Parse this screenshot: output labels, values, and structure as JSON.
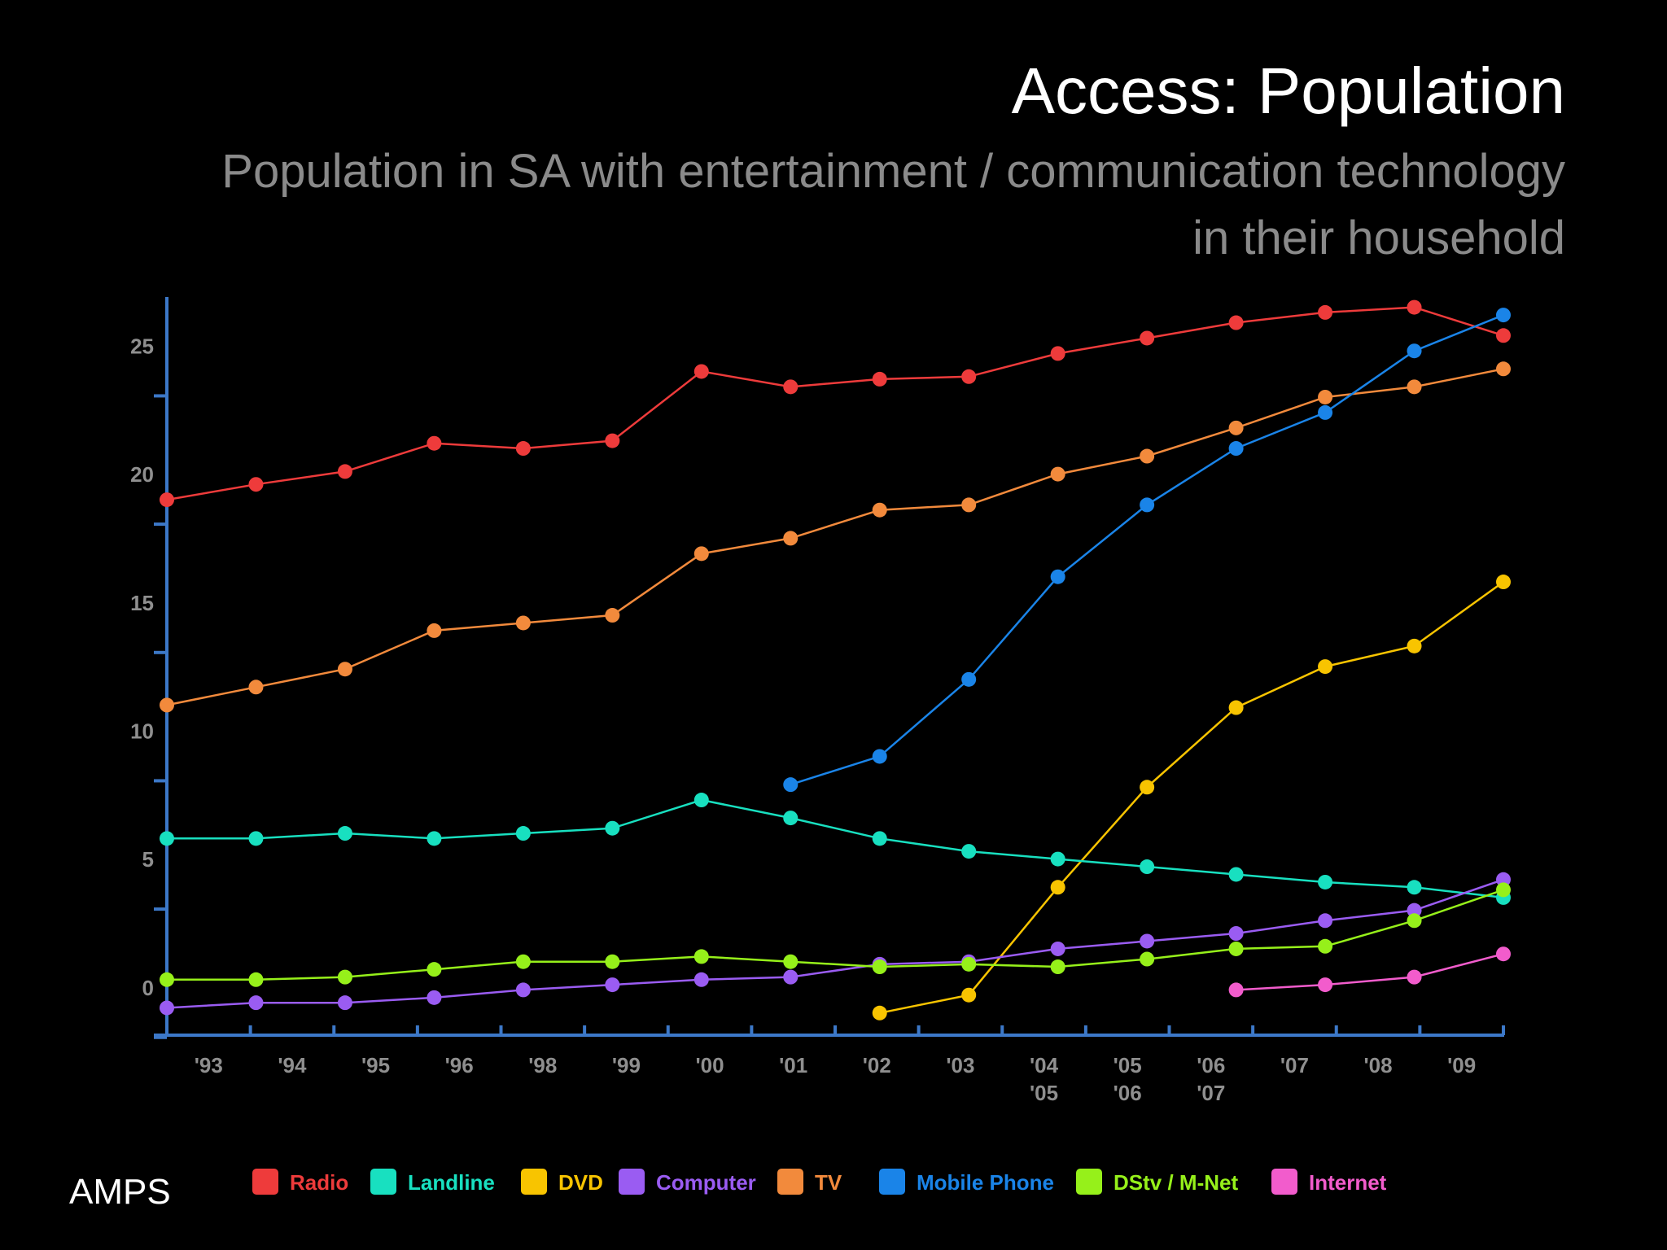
{
  "title": "Access: Population",
  "subtitle": "Population in SA with entertainment / communication technology in their household",
  "source": "AMPS",
  "chart_data": {
    "type": "line",
    "title": "Access: Population",
    "subtitle": "Population in SA with entertainment / communication technology in their household",
    "xlabel": "",
    "ylabel": "",
    "x_tick_labels": [
      "'93",
      "'94",
      "'95",
      "'96",
      "'98",
      "'99",
      "'00",
      "'01",
      "'02",
      "'03",
      "'04 '05",
      "'05 '06",
      "'06 '07",
      "'07",
      "'08",
      "'09"
    ],
    "y_ticks": [
      0,
      5,
      10,
      15,
      20,
      25
    ],
    "ylim": [
      -0.8,
      27.9
    ],
    "grid": false,
    "legend_position": "bottom",
    "series": [
      {
        "name": "Radio",
        "color": "#ee3b3b",
        "values": [
          20.0,
          20.6,
          21.1,
          22.2,
          22.0,
          22.3,
          25.0,
          24.4,
          24.7,
          24.8,
          25.7,
          26.3,
          26.9,
          27.3,
          27.5,
          26.4
        ]
      },
      {
        "name": "TV",
        "color": "#f28a3c",
        "values": [
          12.0,
          12.7,
          13.4,
          14.9,
          15.2,
          15.5,
          17.9,
          18.5,
          19.6,
          19.8,
          21.0,
          21.7,
          22.8,
          24.0,
          24.4,
          25.1
        ]
      },
      {
        "name": "Mobile Phone",
        "color": "#1a84e8",
        "values": [
          null,
          null,
          null,
          null,
          null,
          null,
          null,
          8.9,
          10.0,
          13.0,
          17.0,
          19.8,
          22.0,
          23.4,
          25.8,
          27.2
        ]
      },
      {
        "name": "DVD",
        "color": "#f8c400",
        "values": [
          null,
          null,
          null,
          null,
          null,
          null,
          null,
          null,
          0.0,
          0.7,
          4.9,
          8.8,
          11.9,
          13.5,
          14.3,
          16.8
        ]
      },
      {
        "name": "Landline",
        "color": "#18e0c0",
        "values": [
          6.8,
          6.8,
          7.0,
          6.8,
          7.0,
          7.2,
          8.3,
          7.6,
          6.8,
          6.3,
          6.0,
          5.7,
          5.4,
          5.1,
          4.9,
          4.5
        ]
      },
      {
        "name": "Computer",
        "color": "#9a5cf2",
        "values": [
          0.2,
          0.4,
          0.4,
          0.6,
          0.9,
          1.1,
          1.3,
          1.4,
          1.9,
          2.0,
          2.5,
          2.8,
          3.1,
          3.6,
          4.0,
          5.2
        ]
      },
      {
        "name": "DSTV / M-Net",
        "color": "#96f01a",
        "values": [
          1.3,
          1.3,
          1.4,
          1.7,
          2.0,
          2.0,
          2.2,
          2.0,
          1.8,
          1.9,
          1.8,
          2.1,
          2.5,
          2.6,
          3.6,
          4.8
        ]
      },
      {
        "name": "Internet",
        "color": "#f25ccc",
        "values": [
          null,
          null,
          null,
          null,
          null,
          null,
          null,
          null,
          null,
          null,
          null,
          null,
          0.9,
          1.1,
          1.4,
          2.3
        ]
      }
    ],
    "legend": [
      {
        "name": "Radio",
        "color": "#ee3b3b"
      },
      {
        "name": "Landline",
        "color": "#18e0c0"
      },
      {
        "name": "DVD",
        "color": "#f8c400"
      },
      {
        "name": "Computer",
        "color": "#9a5cf2"
      },
      {
        "name": "TV",
        "color": "#f28a3c"
      },
      {
        "name": "Mobile Phone",
        "color": "#1a84e8"
      },
      {
        "name": "DStv / M-Net",
        "color": "#96f01a"
      },
      {
        "name": "Internet",
        "color": "#f25ccc"
      }
    ],
    "axis_color": "#3c78c8"
  }
}
